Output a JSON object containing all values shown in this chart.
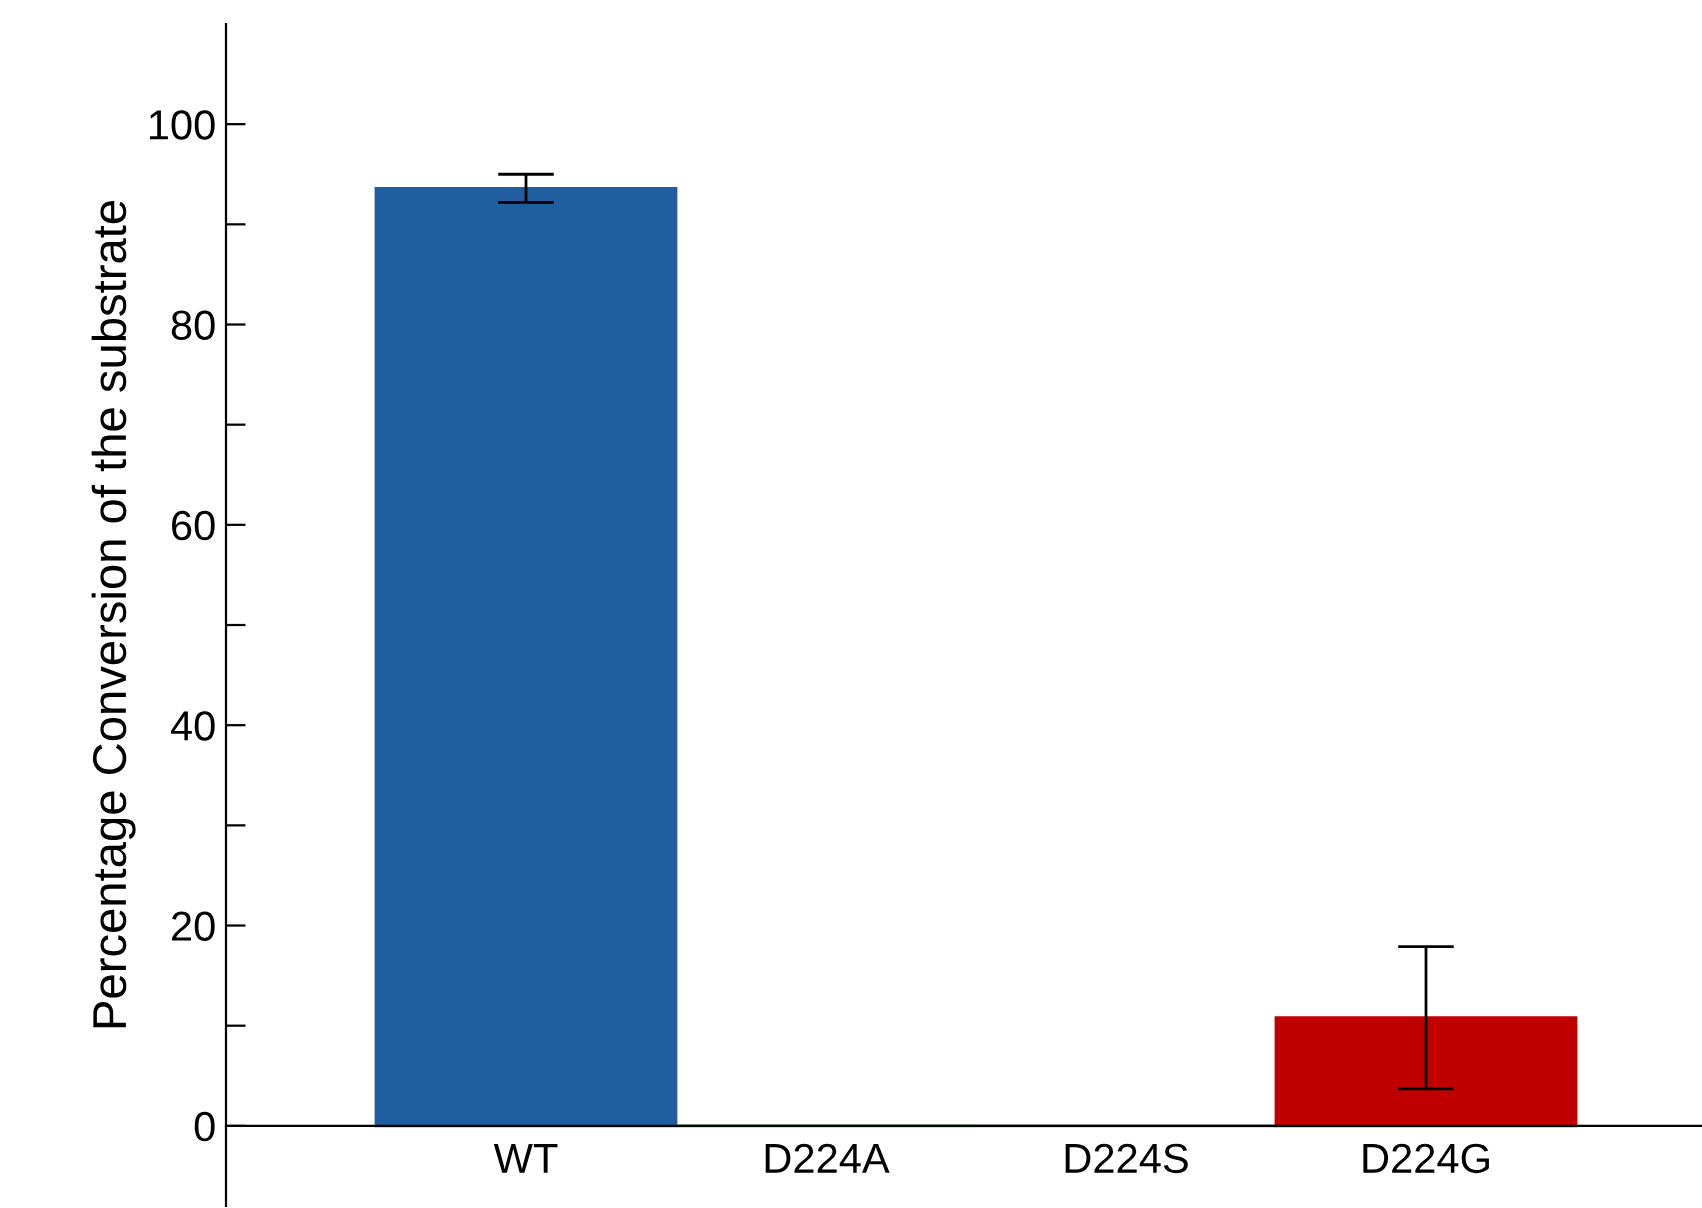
{
  "chart_data": {
    "type": "bar",
    "ylabel": "Percentage Conversion of the substrate",
    "categories": [
      "WT",
      "D224A",
      "D224S",
      "D224G"
    ],
    "values": [
      93.6,
      0,
      0,
      10.8
    ],
    "errors": [
      1.4,
      null,
      null,
      7.1
    ],
    "colors": [
      "#1f5f9f",
      "#2e8b3e",
      "#7f7f7f",
      "#c00000"
    ],
    "ylim": [
      -8,
      110
    ],
    "yticks": [
      0,
      {
        "value": 10,
        "label": null
      },
      20,
      {
        "value": 30,
        "label": null
      },
      40,
      {
        "value": 50,
        "label": null
      },
      60,
      {
        "value": 70,
        "label": null
      },
      80,
      {
        "value": 90,
        "label": null
      },
      100
    ],
    "grid": false,
    "legend": false
  }
}
